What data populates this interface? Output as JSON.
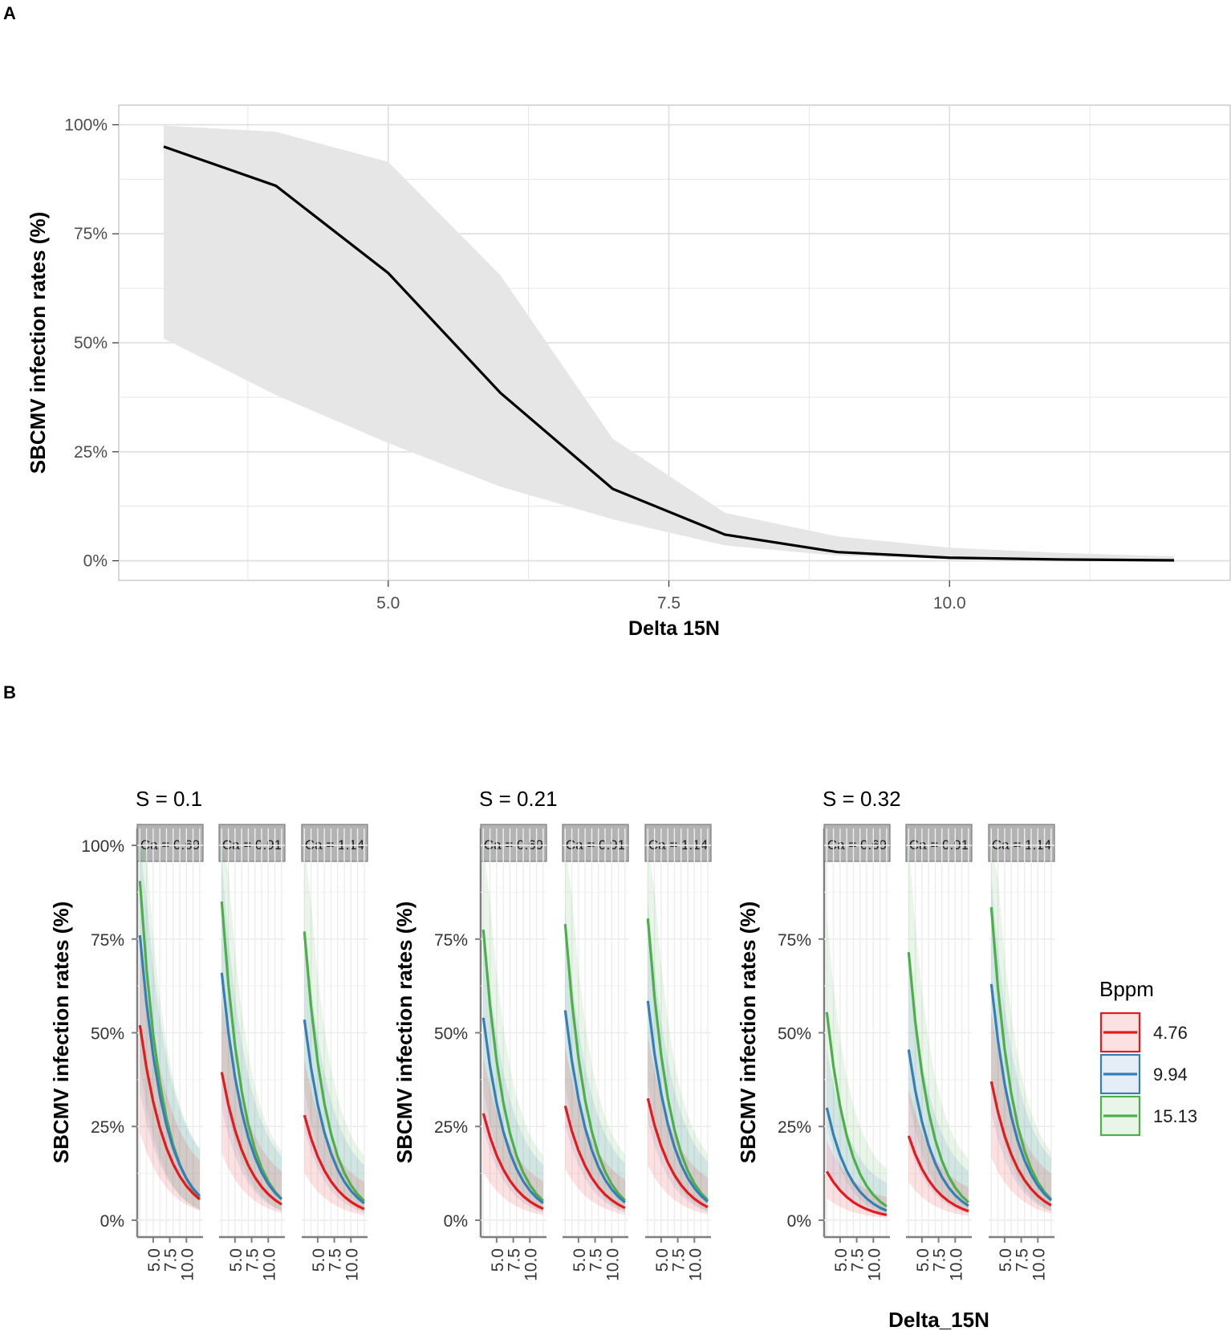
{
  "panels": {
    "a_label": "A",
    "b_label": "B"
  },
  "colors": {
    "line": "#000000",
    "ribbon": "#e6e6e6",
    "grid": "#e6e6e6",
    "strip": "#b3b3b3",
    "axis": "#7f7f7f"
  },
  "chart_data": [
    {
      "type": "line",
      "title": "",
      "xlabel": "Delta 15N",
      "ylabel": "SBCMV infection rates (%)",
      "xlim": [
        2.6,
        12.5
      ],
      "ylim": [
        -0.045,
        1.045
      ],
      "x_ticks": [
        5.0,
        7.5,
        10.0
      ],
      "x_tick_labels": [
        "5.0",
        "7.5",
        "10.0"
      ],
      "y_ticks": [
        0,
        0.25,
        0.5,
        0.75,
        1.0
      ],
      "y_tick_labels": [
        "0%",
        "25%",
        "50%",
        "75%",
        "100%"
      ],
      "series": [
        {
          "name": "fit",
          "x": [
            3,
            4,
            5,
            6,
            7,
            8,
            9,
            10,
            11,
            12
          ],
          "y": [
            0.95,
            0.86,
            0.66,
            0.385,
            0.165,
            0.06,
            0.02,
            0.007,
            0.003,
            0.001
          ],
          "lower": [
            0.51,
            0.38,
            0.27,
            0.17,
            0.095,
            0.035,
            0.012,
            0.004,
            0.001,
            0.0
          ],
          "upper": [
            0.998,
            0.984,
            0.915,
            0.655,
            0.28,
            0.11,
            0.056,
            0.03,
            0.018,
            0.01
          ]
        }
      ]
    },
    {
      "type": "line",
      "subtype": "faceted",
      "xlabel": "Delta_15N",
      "ylabel": "SBCMV infection rates (%)",
      "legend_title": "Bppm",
      "legend_position": "right",
      "x": [
        3,
        4,
        5,
        6,
        7,
        8,
        9,
        10,
        11,
        12
      ],
      "x_ticks": [
        5.0,
        7.5,
        10.0
      ],
      "x_tick_labels": [
        "5.0",
        "7.5",
        "10.0"
      ],
      "y_ticks": [
        0,
        0.25,
        0.5,
        0.75,
        1.0
      ],
      "y_tick_labels": [
        "0%",
        "25%",
        "50%",
        "75%",
        "100%"
      ],
      "y_tick_labels_short": [
        "0%",
        "25%",
        "50%",
        "75%"
      ],
      "bppm_levels": [
        {
          "label": "4.76",
          "color": "#e41a1c"
        },
        {
          "label": "9.94",
          "color": "#377eb8"
        },
        {
          "label": "15.13",
          "color": "#4daf4a"
        }
      ],
      "groups": [
        {
          "title": "S = 0.1",
          "facets": [
            {
              "strip": "Ca = 0.69",
              "starts": [
                0.52,
                0.76,
                0.905
              ]
            },
            {
              "strip": "Ca = 0.91",
              "starts": [
                0.395,
                0.66,
                0.85
              ]
            },
            {
              "strip": "Ca = 1.14",
              "starts": [
                0.28,
                0.535,
                0.77
              ]
            }
          ]
        },
        {
          "title": "S = 0.21",
          "facets": [
            {
              "strip": "Ca = 0.69",
              "starts": [
                0.285,
                0.54,
                0.775
              ]
            },
            {
              "strip": "Ca = 0.91",
              "starts": [
                0.305,
                0.56,
                0.79
              ]
            },
            {
              "strip": "Ca = 1.14",
              "starts": [
                0.325,
                0.585,
                0.805
              ]
            }
          ]
        },
        {
          "title": "S = 0.32",
          "facets": [
            {
              "strip": "Ca = 0.69",
              "starts": [
                0.13,
                0.3,
                0.555
              ]
            },
            {
              "strip": "Ca = 0.91",
              "starts": [
                0.225,
                0.455,
                0.715
              ]
            },
            {
              "strip": "Ca = 1.14",
              "starts": [
                0.37,
                0.63,
                0.835
              ]
            }
          ]
        }
      ]
    }
  ]
}
